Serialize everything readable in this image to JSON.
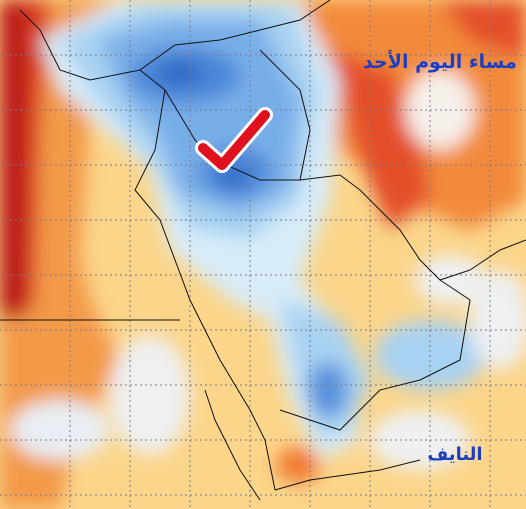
{
  "labels": {
    "time": "مساء اليوم الأحد",
    "credit": "النايف"
  }
}
